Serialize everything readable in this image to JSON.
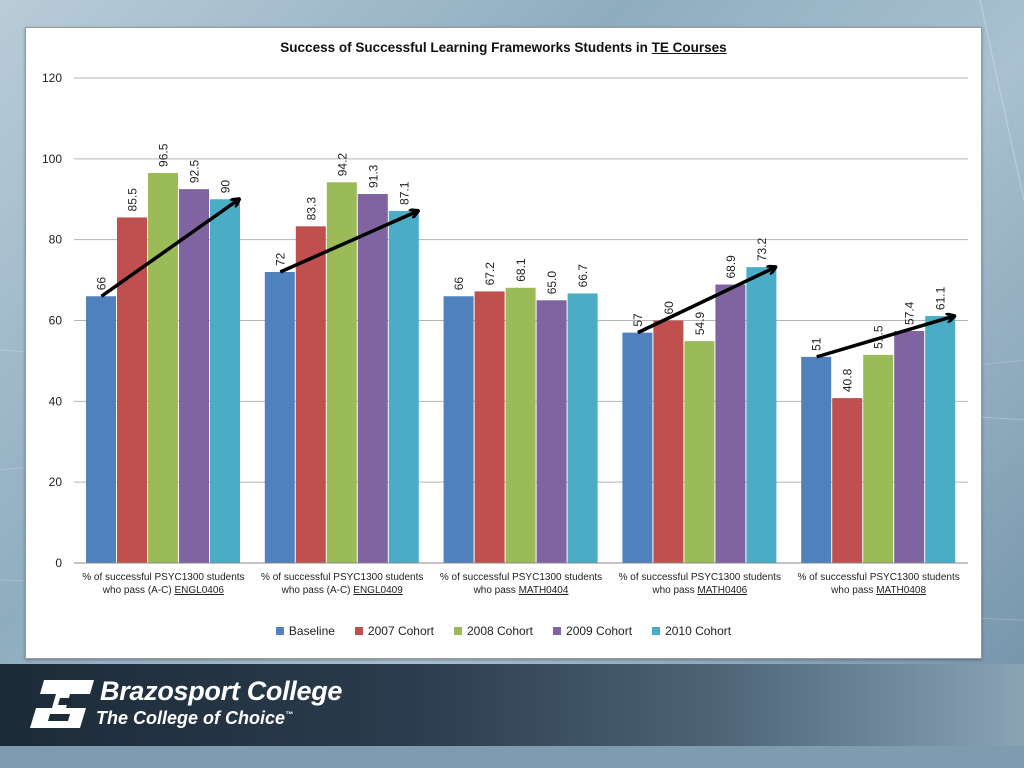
{
  "chart_data": {
    "type": "bar",
    "title_prefix": "Success of Successful Learning Frameworks Students in ",
    "title_emphasis": "TE Courses",
    "ylim": [
      0,
      120
    ],
    "yticks": [
      0,
      20,
      40,
      60,
      80,
      100,
      120
    ],
    "grid": true,
    "legend_position": "bottom",
    "categories": [
      {
        "line1": "% of successful PSYC1300 students",
        "line2_prefix": "who pass (A-C) ",
        "course": "ENGL0406"
      },
      {
        "line1": "% of successful PSYC1300 students",
        "line2_prefix": "who pass (A-C) ",
        "course": "ENGL0409"
      },
      {
        "line1": "% of successful PSYC1300 students",
        "line2_prefix": "who pass ",
        "course": "MATH0404"
      },
      {
        "line1": "% of successful PSYC1300 students",
        "line2_prefix": "who pass ",
        "course": "MATH0406"
      },
      {
        "line1": "% of successful PSYC1300 students",
        "line2_prefix": "who pass ",
        "course": "MATH0408"
      }
    ],
    "series": [
      {
        "name": "Baseline",
        "color": "#4f81bd",
        "values": [
          66,
          72,
          66,
          57,
          51
        ],
        "labels": [
          "66",
          "72",
          "66",
          "57",
          "51"
        ]
      },
      {
        "name": "2007 Cohort",
        "color": "#c0504d",
        "values": [
          85.5,
          83.3,
          67.2,
          60,
          40.8
        ],
        "labels": [
          "85.5",
          "83.3",
          "67.2",
          "60",
          "40.8"
        ]
      },
      {
        "name": "2008 Cohort",
        "color": "#9bbb59",
        "values": [
          96.5,
          94.2,
          68.1,
          54.9,
          51.5
        ],
        "labels": [
          "96.5",
          "94.2",
          "68.1",
          "54.9",
          "51.5"
        ]
      },
      {
        "name": "2009 Cohort",
        "color": "#8064a2",
        "values": [
          92.5,
          91.3,
          65.0,
          68.9,
          57.4
        ],
        "labels": [
          "92.5",
          "91.3",
          "65.0",
          "68.9",
          "57.4"
        ]
      },
      {
        "name": "2010 Cohort",
        "color": "#4bacc6",
        "values": [
          90,
          87.1,
          66.7,
          73.2,
          61.1
        ],
        "labels": [
          "90",
          "87.1",
          "66.7",
          "73.2",
          "61.1"
        ]
      }
    ],
    "trend_arrows": [
      {
        "category": 0,
        "from_value": 66,
        "to_value": 90
      },
      {
        "category": 1,
        "from_value": 72,
        "to_value": 87.1
      },
      {
        "category": 3,
        "from_value": 57,
        "to_value": 73.2
      },
      {
        "category": 4,
        "from_value": 51,
        "to_value": 61.1
      }
    ]
  },
  "footer": {
    "college_name": "Brazosport College",
    "tagline": "The College of Choice",
    "trademark": "™"
  },
  "colors": {
    "footer_dark": "#1d2b38",
    "logo": "#ffffff"
  }
}
